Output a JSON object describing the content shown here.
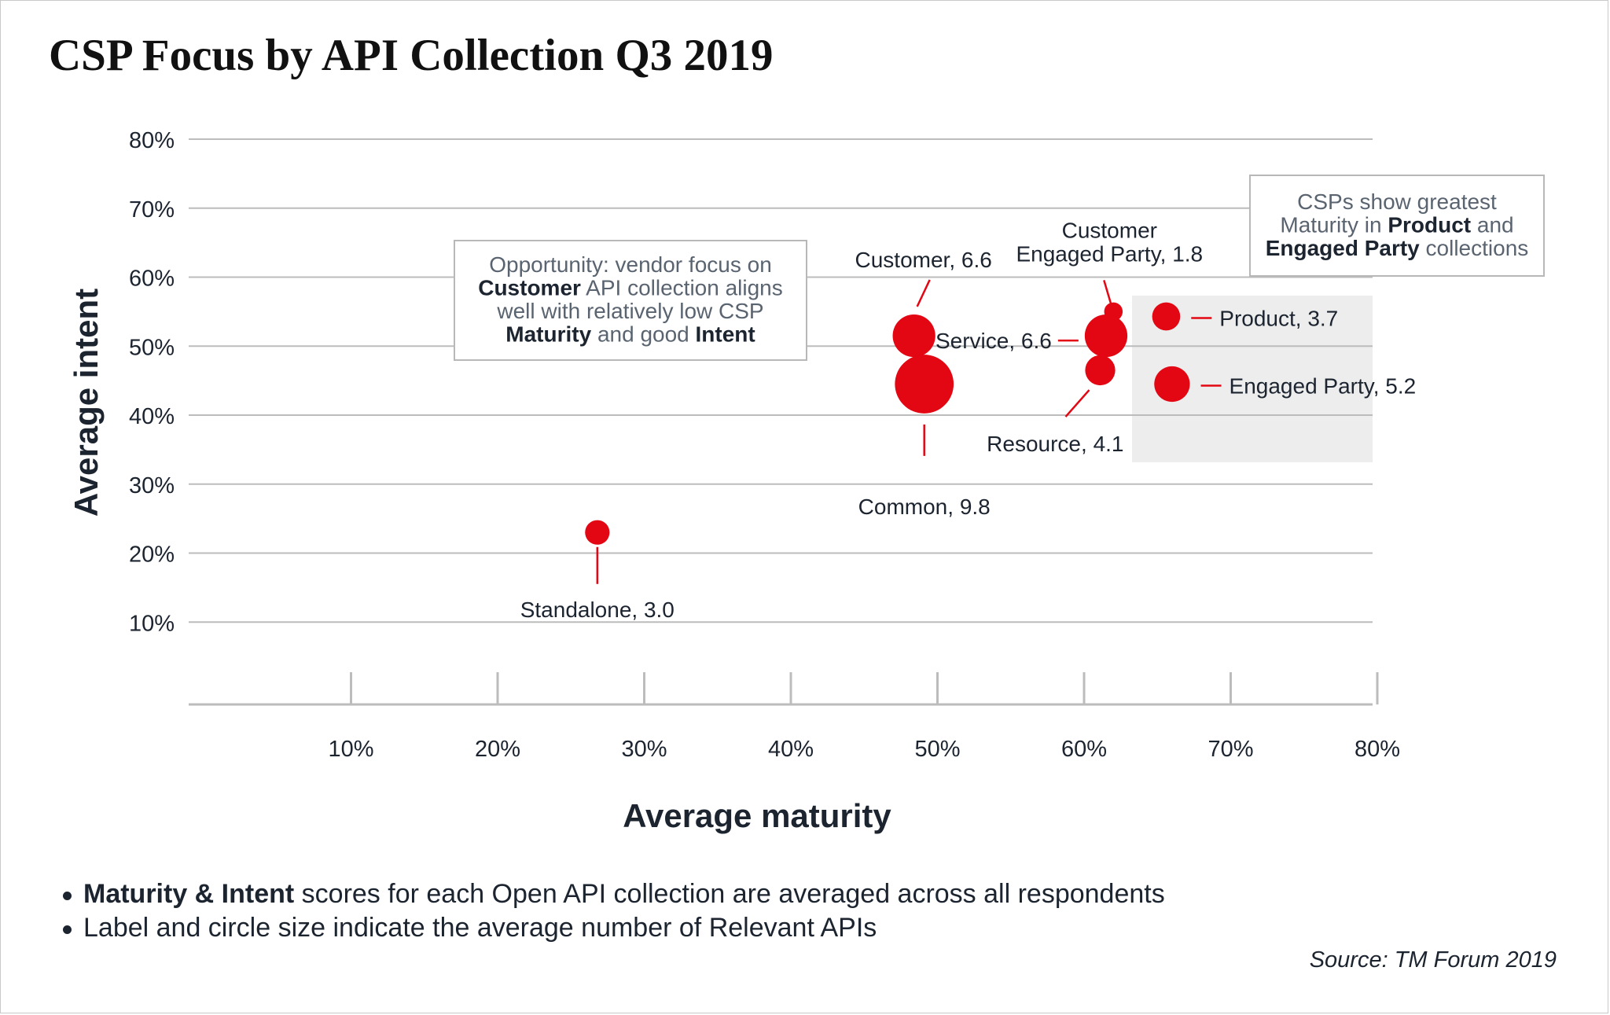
{
  "title": "CSP Focus by API Collection Q3 2019",
  "colors": {
    "bubble": "#e30613",
    "grid": "#bcbcbc",
    "text": "#1c2430",
    "annotation_text": "#5a6470",
    "highlight_band": "#ededed"
  },
  "chart_data": {
    "type": "scatter",
    "xlabel": "Average maturity",
    "ylabel": "Average intent",
    "xlim": [
      0,
      80
    ],
    "ylim": [
      0,
      80
    ],
    "x_ticks": [
      "10%",
      "20%",
      "30%",
      "40%",
      "50%",
      "60%",
      "70%",
      "80%"
    ],
    "y_ticks": [
      "80%",
      "70%",
      "60%",
      "50%",
      "40%",
      "30%",
      "20%",
      "10%"
    ],
    "grid": "horizontal",
    "size_meaning": "average number of Relevant APIs",
    "points": [
      {
        "label": "Standalone, 3.0",
        "x": 26.8,
        "y": 23,
        "size": 3.0,
        "label_pos": "below"
      },
      {
        "label": "Customer, 6.6",
        "x": 48.4,
        "y": 51.5,
        "size": 6.6,
        "label_pos": "above"
      },
      {
        "label": "Common, 9.8",
        "x": 49.1,
        "y": 44.5,
        "size": 9.8,
        "label_pos": "below"
      },
      {
        "label": "Customer\nEngaged Party, 1.8",
        "x": 62.0,
        "y": 55,
        "size": 1.8,
        "label_pos": "above"
      },
      {
        "label": "Service, 6.6",
        "x": 61.5,
        "y": 51.5,
        "size": 6.6,
        "label_pos": "left"
      },
      {
        "label": "Resource, 4.1",
        "x": 61.1,
        "y": 46.5,
        "size": 4.1,
        "label_pos": "below-left"
      },
      {
        "label": "Product, 3.7",
        "x": 65.6,
        "y": 54.3,
        "size": 3.7,
        "label_pos": "right"
      },
      {
        "label": "Engaged Party, 5.2",
        "x": 66.0,
        "y": 44.5,
        "size": 5.2,
        "label_pos": "right"
      }
    ],
    "annotations": [
      {
        "lines": [
          [
            {
              "t": "Opportunity: vendor focus on",
              "b": false
            }
          ],
          [
            {
              "t": "Customer",
              "b": true
            },
            {
              "t": " API collection aligns",
              "b": false
            }
          ],
          [
            {
              "t": "well with relatively low CSP",
              "b": false
            }
          ],
          [
            {
              "t": "Maturity",
              "b": true
            },
            {
              "t": " and good ",
              "b": false
            },
            {
              "t": "Intent",
              "b": true
            }
          ]
        ]
      },
      {
        "lines": [
          [
            {
              "t": "CSPs show greatest",
              "b": false
            }
          ],
          [
            {
              "t": "Maturity in ",
              "b": false
            },
            {
              "t": "Product",
              "b": true
            },
            {
              "t": " and",
              "b": false
            }
          ],
          [
            {
              "t": "Engaged Party",
              "b": true
            },
            {
              "t": " collections",
              "b": false
            }
          ]
        ]
      }
    ]
  },
  "notes": {
    "note1_bold": "Maturity & Intent",
    "note1_rest": " scores for each Open API collection are averaged across all respondents",
    "note2": "Label and circle size indicate the average number of Relevant APIs"
  },
  "source": "Source: TM Forum 2019"
}
